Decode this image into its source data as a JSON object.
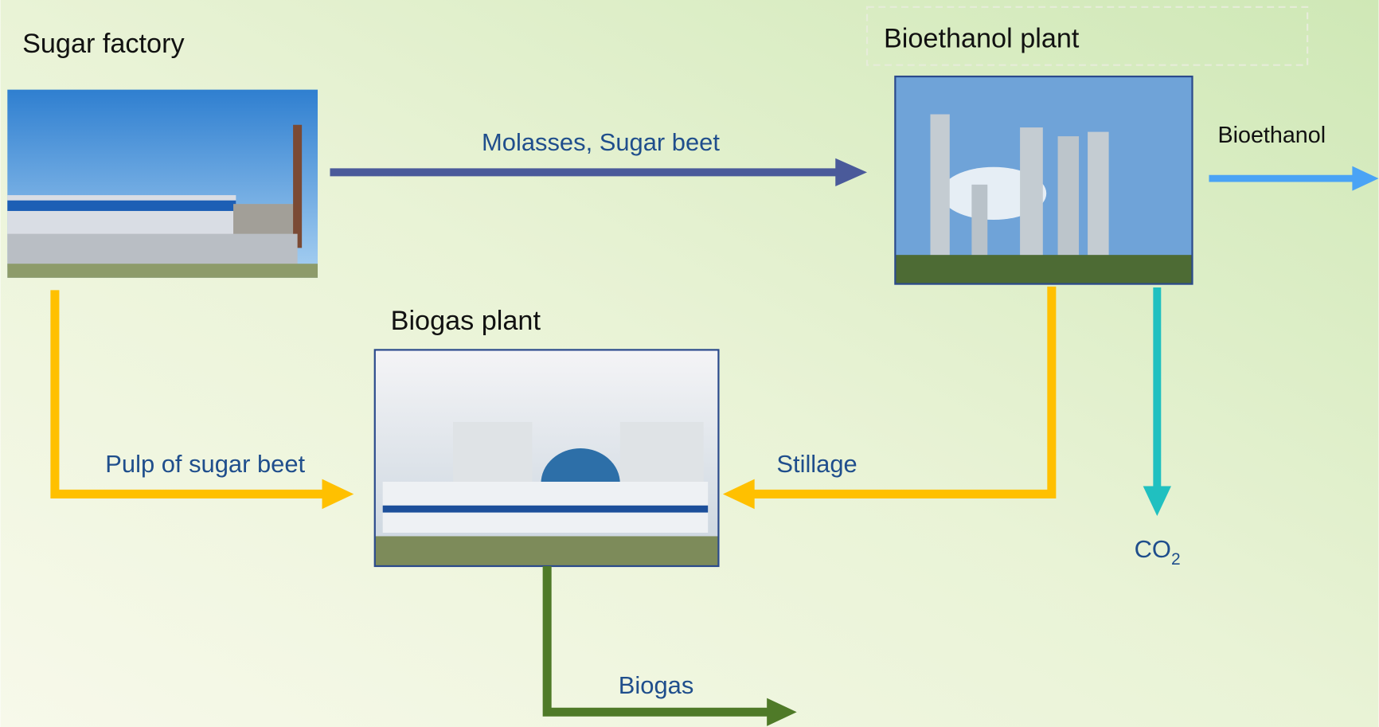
{
  "nodes": [
    {
      "label": "Sugar factory"
    },
    {
      "label": "Bioethanol plant"
    },
    {
      "label": "Biogas plant"
    }
  ],
  "edges": [
    {
      "label": "Molasses, Sugar beet"
    },
    {
      "label": "Bioethanol"
    },
    {
      "label": "Pulp of sugar beet"
    },
    {
      "label": "Stillage"
    },
    {
      "label": "CO",
      "subscript": "2"
    },
    {
      "label": "Biogas"
    }
  ]
}
